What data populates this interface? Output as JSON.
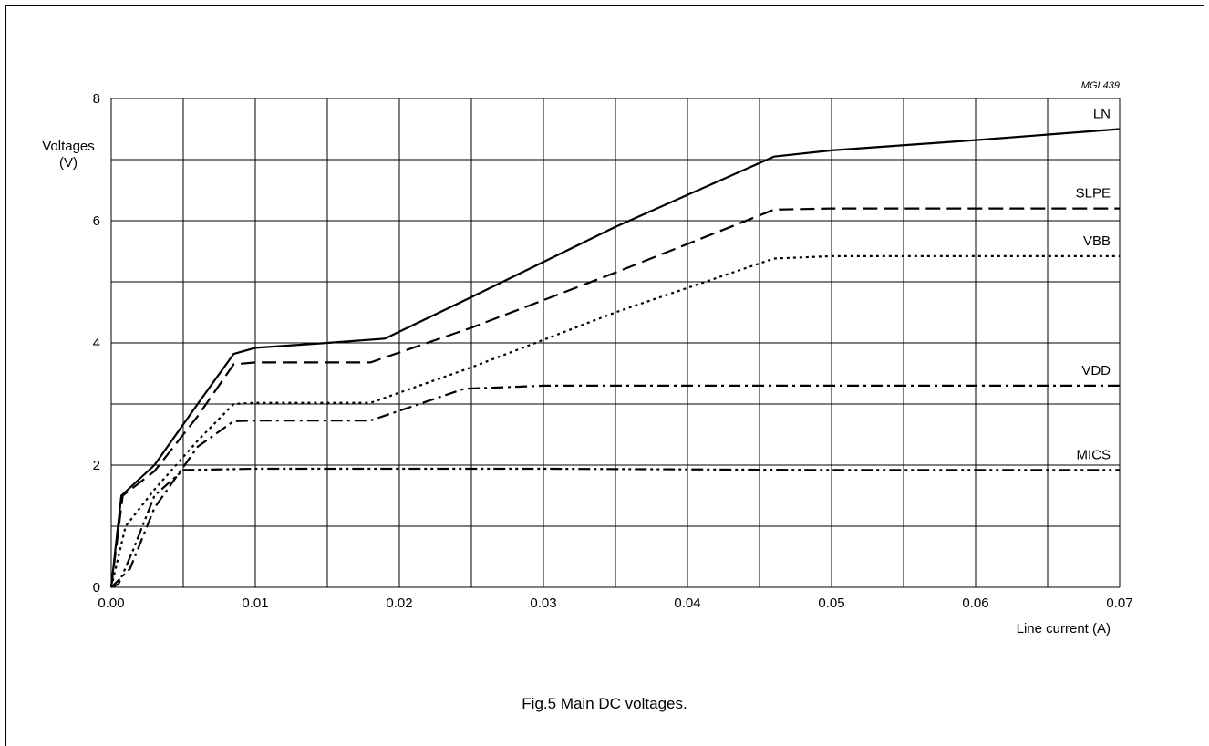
{
  "figure": {
    "code": "MGL439",
    "caption": "Fig.5  Main DC voltages."
  },
  "chart_data": {
    "type": "line",
    "xlabel": "Line current (A)",
    "ylabel_line1": "Voltages",
    "ylabel_line2": "(V)",
    "xlim": [
      0,
      0.07
    ],
    "ylim": [
      0,
      8
    ],
    "x_ticks": [
      0.0,
      0.01,
      0.02,
      0.03,
      0.04,
      0.05,
      0.06,
      0.07
    ],
    "x_tick_labels": [
      "0.00",
      "0.01",
      "0.02",
      "0.03",
      "0.04",
      "0.05",
      "0.06",
      "0.07"
    ],
    "y_ticks": [
      0,
      2,
      4,
      6,
      8
    ],
    "y_tick_labels": [
      "0",
      "2",
      "4",
      "6",
      "8"
    ],
    "grid_x_step": 0.005,
    "grid_y_step": 1,
    "series": [
      {
        "name": "LN",
        "dash": "solid",
        "points": [
          [
            0.0,
            0.0
          ],
          [
            0.0007,
            1.5
          ],
          [
            0.003,
            2.0
          ],
          [
            0.006,
            3.0
          ],
          [
            0.0085,
            3.82
          ],
          [
            0.01,
            3.92
          ],
          [
            0.015,
            4.0
          ],
          [
            0.019,
            4.07
          ],
          [
            0.025,
            4.75
          ],
          [
            0.035,
            5.9
          ],
          [
            0.046,
            7.05
          ],
          [
            0.05,
            7.15
          ],
          [
            0.06,
            7.32
          ],
          [
            0.07,
            7.5
          ]
        ]
      },
      {
        "name": "SLPE",
        "dash": "long-dash",
        "points": [
          [
            0.0,
            0.0
          ],
          [
            0.0008,
            1.5
          ],
          [
            0.003,
            1.9
          ],
          [
            0.006,
            2.8
          ],
          [
            0.0085,
            3.65
          ],
          [
            0.01,
            3.68
          ],
          [
            0.018,
            3.68
          ],
          [
            0.025,
            4.25
          ],
          [
            0.035,
            5.15
          ],
          [
            0.046,
            6.18
          ],
          [
            0.05,
            6.2
          ],
          [
            0.06,
            6.2
          ],
          [
            0.07,
            6.2
          ]
        ]
      },
      {
        "name": "VBB",
        "dash": "dotted",
        "points": [
          [
            0.0,
            0.0
          ],
          [
            0.001,
            1.0
          ],
          [
            0.003,
            1.6
          ],
          [
            0.006,
            2.4
          ],
          [
            0.0085,
            3.0
          ],
          [
            0.01,
            3.02
          ],
          [
            0.018,
            3.02
          ],
          [
            0.025,
            3.6
          ],
          [
            0.035,
            4.5
          ],
          [
            0.046,
            5.38
          ],
          [
            0.05,
            5.42
          ],
          [
            0.06,
            5.42
          ],
          [
            0.07,
            5.42
          ]
        ]
      },
      {
        "name": "VDD",
        "dash": "dash-dot",
        "points": [
          [
            0.0,
            0.0
          ],
          [
            0.0013,
            0.3
          ],
          [
            0.003,
            1.3
          ],
          [
            0.006,
            2.3
          ],
          [
            0.0085,
            2.72
          ],
          [
            0.01,
            2.73
          ],
          [
            0.018,
            2.73
          ],
          [
            0.0245,
            3.25
          ],
          [
            0.03,
            3.3
          ],
          [
            0.05,
            3.3
          ],
          [
            0.07,
            3.3
          ]
        ]
      },
      {
        "name": "MICS",
        "dash": "dash-dot-dot",
        "points": [
          [
            0.0,
            0.0
          ],
          [
            0.0005,
            0.05
          ],
          [
            0.0015,
            0.6
          ],
          [
            0.003,
            1.5
          ],
          [
            0.005,
            1.92
          ],
          [
            0.01,
            1.94
          ],
          [
            0.03,
            1.94
          ],
          [
            0.05,
            1.92
          ],
          [
            0.07,
            1.92
          ]
        ]
      }
    ]
  }
}
